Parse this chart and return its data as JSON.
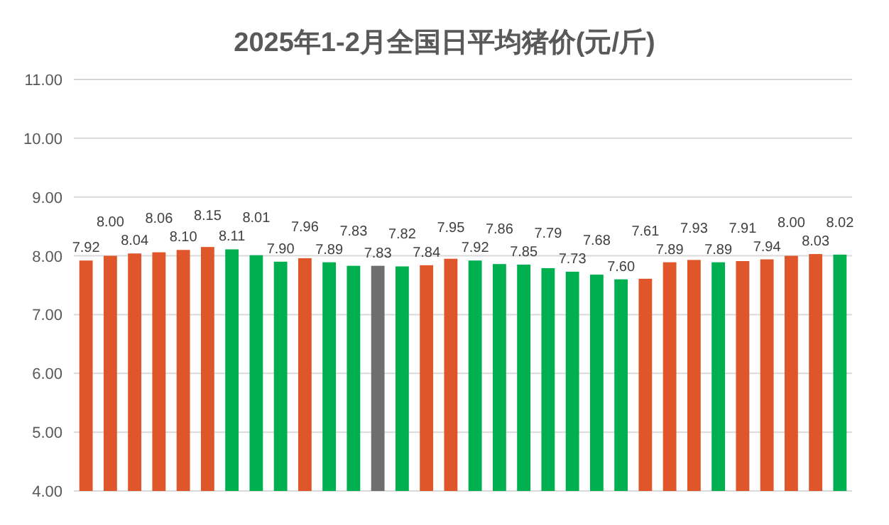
{
  "chart_data": {
    "type": "bar",
    "title": "2025年1-2月全国日平均猪价(元/斤)",
    "categories": [
      null,
      null,
      null,
      null,
      null,
      null,
      null,
      null,
      null,
      null,
      null,
      null,
      null,
      null,
      null,
      null,
      null,
      null,
      null,
      null,
      null,
      null,
      null,
      null,
      null,
      null,
      null,
      null,
      null,
      null,
      null,
      null
    ],
    "values": [
      7.92,
      8.0,
      8.04,
      8.06,
      8.1,
      8.15,
      8.11,
      8.01,
      7.9,
      7.96,
      7.89,
      7.83,
      7.83,
      7.82,
      7.84,
      7.95,
      7.92,
      7.86,
      7.85,
      7.79,
      7.73,
      7.68,
      7.6,
      7.61,
      7.89,
      7.93,
      7.89,
      7.91,
      7.94,
      8.0,
      8.03,
      8.02
    ],
    "colors": [
      "#e0562b",
      "#e0562b",
      "#e0562b",
      "#e0562b",
      "#e0562b",
      "#e0562b",
      "#00b050",
      "#00b050",
      "#00b050",
      "#e0562b",
      "#00b050",
      "#00b050",
      "#6e6e6e",
      "#00b050",
      "#e0562b",
      "#e0562b",
      "#00b050",
      "#00b050",
      "#00b050",
      "#00b050",
      "#00b050",
      "#00b050",
      "#00b050",
      "#e0562b",
      "#e0562b",
      "#e0562b",
      "#00b050",
      "#e0562b",
      "#e0562b",
      "#e0562b",
      "#e0562b",
      "#00b050"
    ],
    "value_labels": [
      "7.92",
      "8.00",
      "8.04",
      "8.06",
      "8.10",
      "8.15",
      "8.11",
      "8.01",
      "7.90",
      "7.96",
      "7.89",
      "7.83",
      "7.83",
      "7.82",
      "7.84",
      "7.95",
      "7.92",
      "7.86",
      "7.85",
      "7.79",
      "7.73",
      "7.68",
      "7.60",
      "7.61",
      "7.89",
      "7.93",
      "7.89",
      "7.91",
      "7.94",
      "8.00",
      "8.03",
      "8.02"
    ],
    "ylim": [
      4,
      11
    ],
    "yticks": [
      {
        "value": 4,
        "label": "4.00"
      },
      {
        "value": 5,
        "label": "5.00"
      },
      {
        "value": 6,
        "label": "6.00"
      },
      {
        "value": 7,
        "label": "7.00"
      },
      {
        "value": 8,
        "label": "8.00"
      },
      {
        "value": 9,
        "label": "9.00"
      },
      {
        "value": 10,
        "label": "10.00"
      },
      {
        "value": 11,
        "label": "11.00"
      }
    ],
    "grid": "y"
  }
}
